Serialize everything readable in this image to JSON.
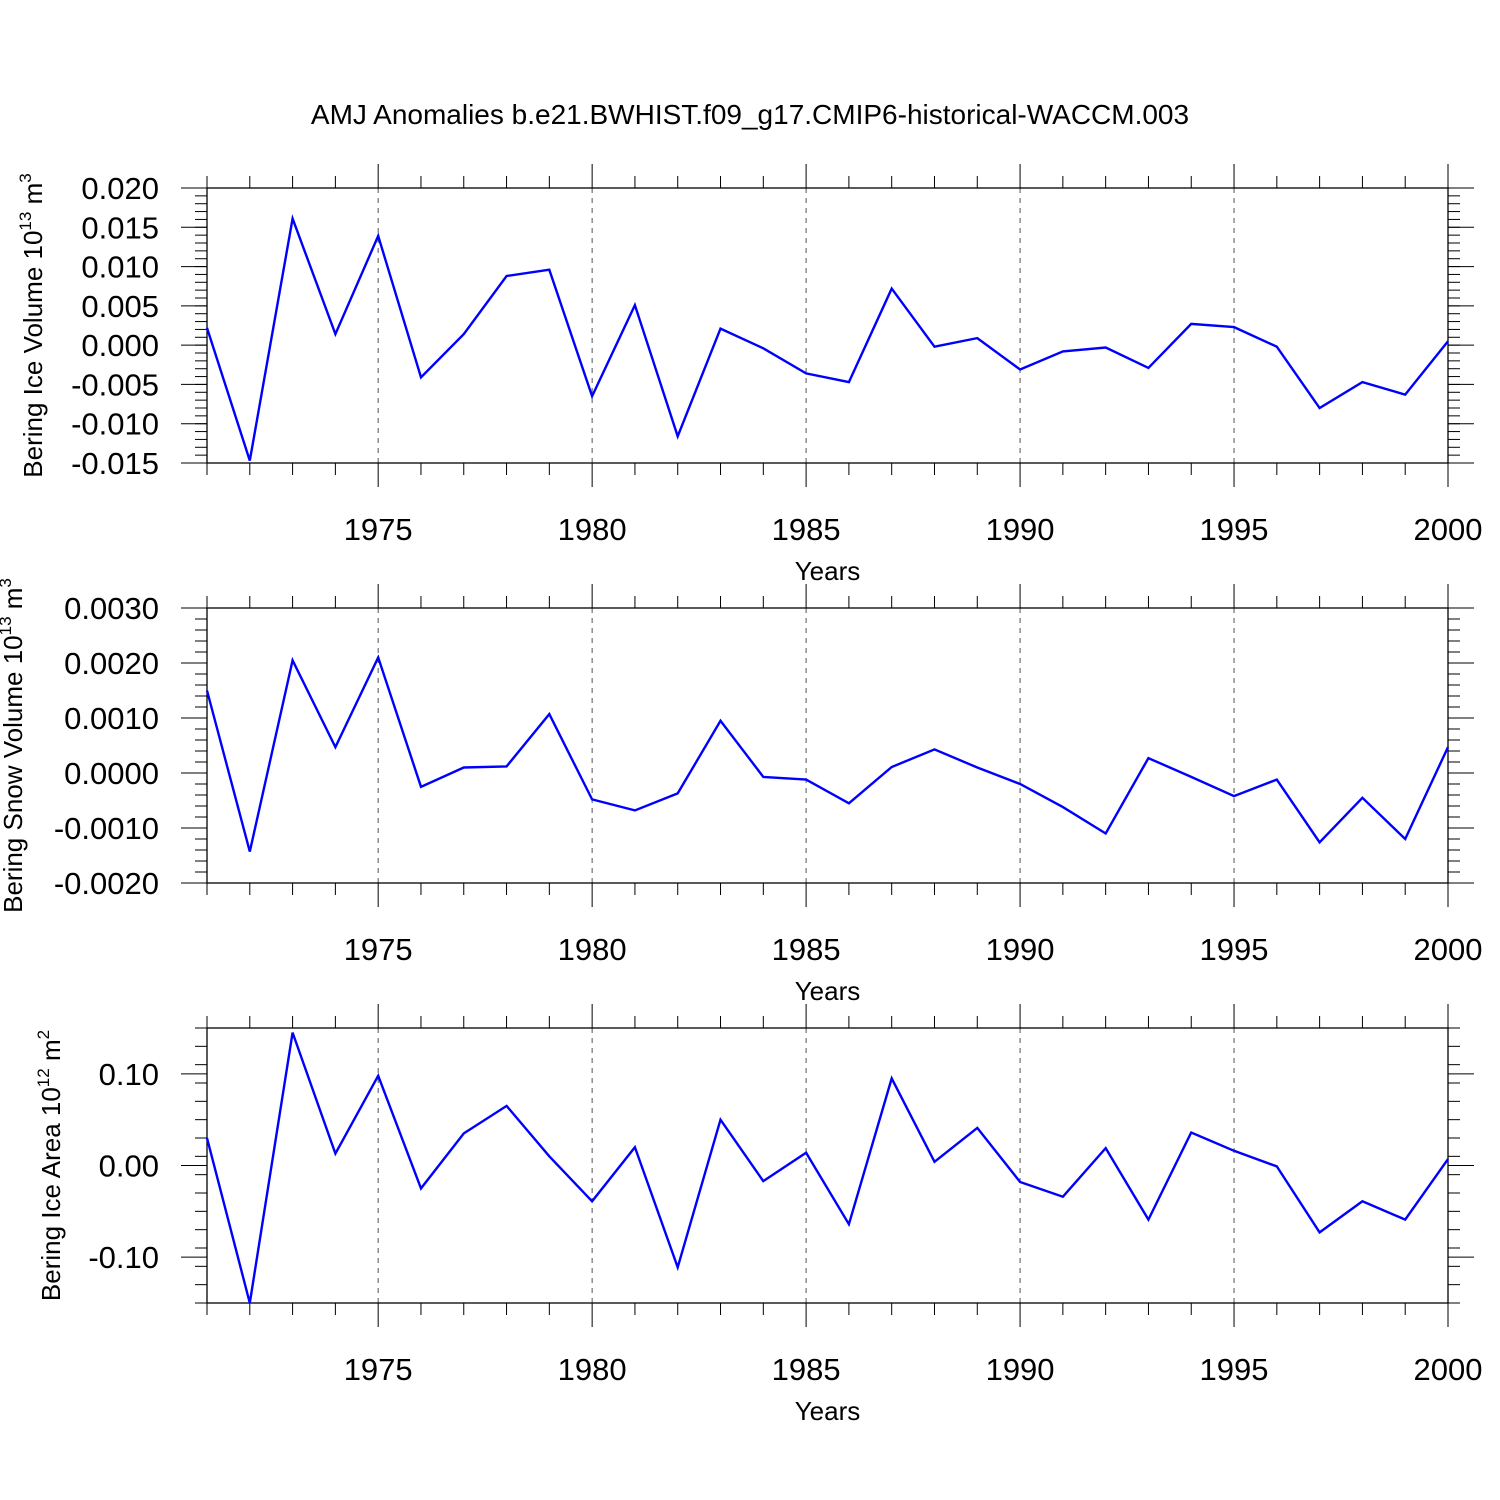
{
  "title": "AMJ Anomalies b.e21.BWHIST.f09_g17.CMIP6-historical-WACCM.003",
  "line_color": "#0000ff",
  "chart_data": [
    {
      "type": "line",
      "title": "AMJ Anomalies b.e21.BWHIST.f09_g17.CMIP6-historical-WACCM.003",
      "xlabel": "Years",
      "ylabel": "Bering Ice Volume 10",
      "ylabel_exp": "13",
      "ylabel_unit": " m",
      "ylabel_unit_exp": "3",
      "xlim": [
        1971,
        2000
      ],
      "ylim": [
        -0.015,
        0.02
      ],
      "x_ticks": [
        1975,
        1980,
        1985,
        1990,
        1995,
        2000
      ],
      "y_ticks": [
        0.02,
        0.015,
        0.01,
        0.005,
        0.0,
        -0.005,
        -0.01,
        -0.015
      ],
      "y_tick_labels": [
        "0.020",
        "0.015",
        "0.010",
        "0.005",
        "0.000",
        "-0.005",
        "-0.010",
        "-0.015"
      ],
      "y_minor_step": 0.001,
      "grid": "vertical dashed at major x ticks",
      "x": [
        1971,
        1972,
        1973,
        1974,
        1975,
        1976,
        1977,
        1978,
        1979,
        1980,
        1981,
        1982,
        1983,
        1984,
        1985,
        1986,
        1987,
        1988,
        1989,
        1990,
        1991,
        1992,
        1993,
        1994,
        1995,
        1996,
        1997,
        1998,
        1999,
        2000
      ],
      "values": [
        0.0022,
        -0.0147,
        0.0161,
        0.0014,
        0.0139,
        -0.0041,
        0.0014,
        0.0088,
        0.0096,
        -0.0065,
        0.0051,
        -0.0116,
        0.0021,
        -0.0004,
        -0.0036,
        -0.0047,
        0.0072,
        -0.0002,
        0.0009,
        -0.0031,
        -0.0008,
        -0.0003,
        -0.0029,
        0.0027,
        0.0023,
        -0.0002,
        -0.008,
        -0.0047,
        -0.0063,
        0.0005
      ]
    },
    {
      "type": "line",
      "xlabel": "Years",
      "ylabel": "Bering Snow Volume 10",
      "ylabel_exp": "13",
      "ylabel_unit": " m",
      "ylabel_unit_exp": "3",
      "xlim": [
        1971,
        2000
      ],
      "ylim": [
        -0.002,
        0.003
      ],
      "x_ticks": [
        1975,
        1980,
        1985,
        1990,
        1995,
        2000
      ],
      "y_ticks": [
        0.003,
        0.002,
        0.001,
        0.0,
        -0.001,
        -0.002
      ],
      "y_tick_labels": [
        "0.0030",
        "0.0020",
        "0.0010",
        "0.0000",
        "-0.0010",
        "-0.0020"
      ],
      "y_minor_step": 0.0002,
      "grid": "vertical dashed at major x ticks",
      "x": [
        1971,
        1972,
        1973,
        1974,
        1975,
        1976,
        1977,
        1978,
        1979,
        1980,
        1981,
        1982,
        1983,
        1984,
        1985,
        1986,
        1987,
        1988,
        1989,
        1990,
        1991,
        1992,
        1993,
        1994,
        1995,
        1996,
        1997,
        1998,
        1999,
        2000
      ],
      "values": [
        0.0015,
        -0.00143,
        0.00205,
        0.00047,
        0.0021,
        -0.00025,
        0.0001,
        0.00012,
        0.00107,
        -0.00048,
        -0.00068,
        -0.00037,
        0.00095,
        -7e-05,
        -0.00012,
        -0.00055,
        0.00011,
        0.00043,
        0.0001,
        -0.0002,
        -0.00062,
        -0.0011,
        0.00027,
        -7e-05,
        -0.00042,
        -0.00012,
        -0.00126,
        -0.00045,
        -0.0012,
        0.00047
      ]
    },
    {
      "type": "line",
      "xlabel": "Years",
      "ylabel": "Bering Ice Area 10",
      "ylabel_exp": "12",
      "ylabel_unit": " m",
      "ylabel_unit_exp": "2",
      "xlim": [
        1971,
        2000
      ],
      "ylim": [
        -0.15,
        0.15
      ],
      "x_ticks": [
        1975,
        1980,
        1985,
        1990,
        1995,
        2000
      ],
      "y_ticks": [
        0.1,
        0.0,
        -0.1
      ],
      "y_tick_labels": [
        "0.10",
        "0.00",
        "-0.10"
      ],
      "y_minor_step": 0.02,
      "grid": "vertical dashed at major x ticks",
      "x": [
        1971,
        1972,
        1973,
        1974,
        1975,
        1976,
        1977,
        1978,
        1979,
        1980,
        1981,
        1982,
        1983,
        1984,
        1985,
        1986,
        1987,
        1988,
        1989,
        1990,
        1991,
        1992,
        1993,
        1994,
        1995,
        1996,
        1997,
        1998,
        1999,
        2000
      ],
      "values": [
        0.03,
        -0.15,
        0.145,
        0.013,
        0.098,
        -0.025,
        0.035,
        0.065,
        0.01,
        -0.039,
        0.02,
        -0.111,
        0.05,
        -0.017,
        0.014,
        -0.064,
        0.095,
        0.004,
        0.041,
        -0.018,
        -0.034,
        0.019,
        -0.059,
        0.036,
        0.016,
        -0.001,
        -0.073,
        -0.039,
        -0.059,
        0.007
      ]
    }
  ]
}
